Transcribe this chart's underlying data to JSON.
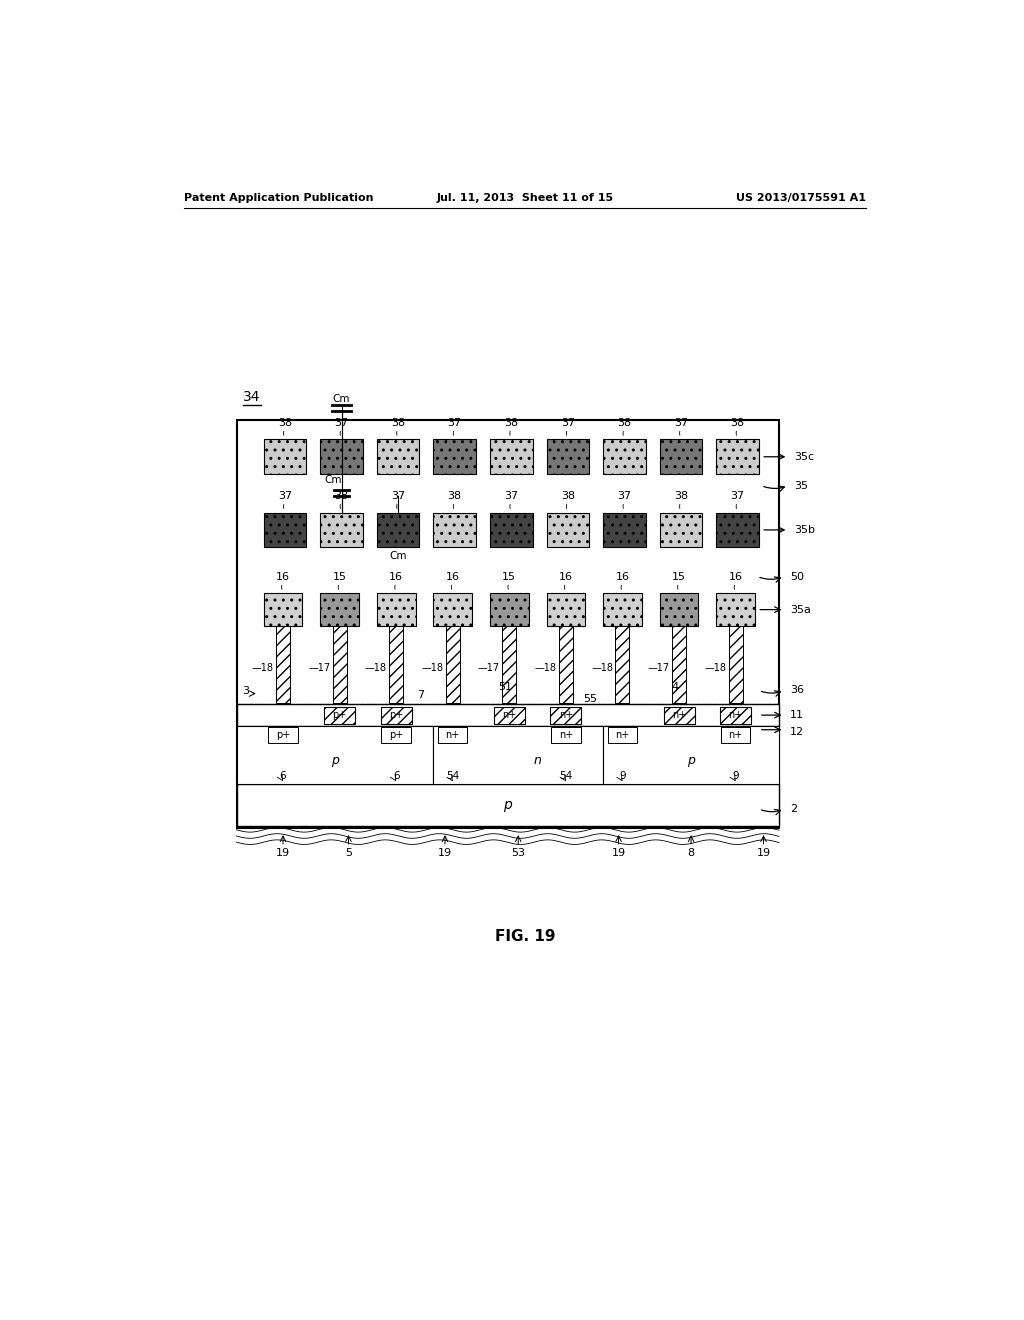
{
  "patent_header": {
    "left": "Patent Application Publication",
    "center": "Jul. 11, 2013  Sheet 11 of 15",
    "right": "US 2013/0175591 A1"
  },
  "bg_color": "#ffffff",
  "fig_title": "FIG. 19"
}
